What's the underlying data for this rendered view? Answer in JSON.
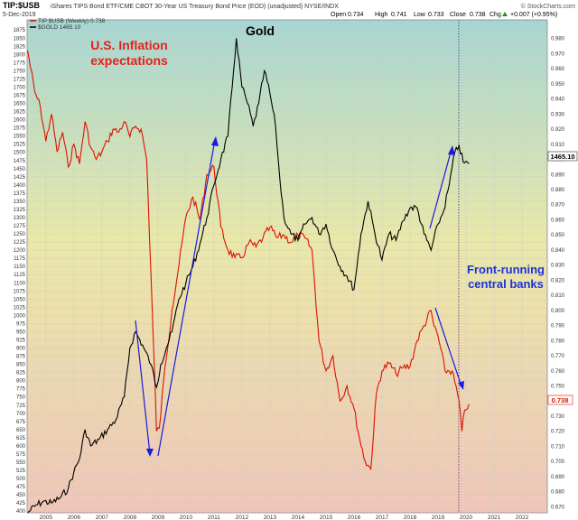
{
  "header": {
    "symbol": "TIP:$USB",
    "description": "iShares TIPS Bond ETF/CME CBOT 30-Year US Treasury Bond Price (EOD) (unadjusted) NYSE/INDX",
    "watermark": "© StockCharts.com",
    "date": "5-Dec-2019",
    "open_label": "Open",
    "open": "0.734",
    "high_label": "High",
    "high": "0.741",
    "low_label": "Low",
    "low": "0.733",
    "close_label": "Close",
    "close": "0.738",
    "chg_label": "Chg",
    "chg": "+0.007 (+0.95%)",
    "chg_icon": "up-triangle-icon"
  },
  "legend": {
    "tip_entry": "TIP:$USB (Weekly) 0.738",
    "gold_entry": "$GOLD 1465.10"
  },
  "colors": {
    "ratio": "#dd1100",
    "gold": "#000000",
    "arrow": "#1a1ae0",
    "grid": "#c8cdd2",
    "text_red": "#e8201a",
    "text_blue": "#1a33d8"
  },
  "annotations": {
    "inflation_line1": "U.S. Inflation",
    "inflation_line2": "expectations",
    "gold_label": "Gold",
    "front_line1": "Front-running",
    "front_line2": "central banks"
  },
  "value_tags": {
    "gold": "1465.10",
    "ratio": "0.738"
  },
  "chart_data": {
    "type": "line",
    "x_ticks": [
      "2005",
      "2006",
      "2007",
      "2008",
      "2009",
      "2010",
      "2011",
      "2012",
      "2013",
      "2014",
      "2015",
      "2016",
      "2017",
      "2018",
      "2019",
      "2020",
      "2021",
      "2022"
    ],
    "left_axis": {
      "min": 400,
      "max": 1875,
      "step": 25
    },
    "right_axis": {
      "min": 0.67,
      "max": 0.98,
      "step": 0.01
    },
    "series": [
      {
        "name": "TIP:$USB",
        "axis": "right",
        "x": [
          2004.35,
          2004.6,
          2004.8,
          2005.0,
          2005.2,
          2005.4,
          2005.6,
          2005.8,
          2006.0,
          2006.2,
          2006.4,
          2006.6,
          2006.8,
          2007.0,
          2007.2,
          2007.4,
          2007.6,
          2007.8,
          2008.0,
          2008.2,
          2008.4,
          2008.6,
          2008.8,
          2008.95,
          2009.05,
          2009.25,
          2009.5,
          2009.75,
          2010.0,
          2010.25,
          2010.5,
          2010.75,
          2011.0,
          2011.25,
          2011.5,
          2011.75,
          2012.0,
          2012.25,
          2012.5,
          2012.75,
          2013.0,
          2013.25,
          2013.5,
          2013.75,
          2014.0,
          2014.25,
          2014.5,
          2014.75,
          2015.0,
          2015.25,
          2015.5,
          2015.75,
          2016.0,
          2016.2,
          2016.4,
          2016.6,
          2016.8,
          2017.0,
          2017.25,
          2017.5,
          2017.75,
          2018.0,
          2018.25,
          2018.5,
          2018.75,
          2018.85,
          2019.0,
          2019.25,
          2019.5,
          2019.75,
          2019.85,
          2019.95,
          2020.1
        ],
        "values": [
          0.972,
          0.945,
          0.935,
          0.912,
          0.93,
          0.905,
          0.918,
          0.895,
          0.91,
          0.897,
          0.925,
          0.908,
          0.9,
          0.905,
          0.912,
          0.92,
          0.918,
          0.925,
          0.915,
          0.922,
          0.92,
          0.9,
          0.8,
          0.72,
          0.722,
          0.762,
          0.8,
          0.83,
          0.862,
          0.875,
          0.86,
          0.89,
          0.895,
          0.855,
          0.84,
          0.835,
          0.835,
          0.845,
          0.842,
          0.848,
          0.855,
          0.848,
          0.85,
          0.845,
          0.85,
          0.848,
          0.84,
          0.78,
          0.76,
          0.77,
          0.74,
          0.75,
          0.735,
          0.715,
          0.7,
          0.695,
          0.745,
          0.76,
          0.765,
          0.758,
          0.762,
          0.763,
          0.78,
          0.79,
          0.8,
          0.79,
          0.783,
          0.76,
          0.76,
          0.74,
          0.72,
          0.734,
          0.738
        ]
      },
      {
        "name": "$GOLD",
        "axis": "left",
        "x": [
          2004.35,
          2004.6,
          2004.9,
          2005.2,
          2005.5,
          2005.8,
          2006.0,
          2006.2,
          2006.4,
          2006.6,
          2006.9,
          2007.2,
          2007.5,
          2007.8,
          2008.0,
          2008.2,
          2008.5,
          2008.75,
          2008.95,
          2009.1,
          2009.3,
          2009.5,
          2009.75,
          2010.0,
          2010.25,
          2010.5,
          2010.75,
          2011.0,
          2011.25,
          2011.5,
          2011.65,
          2011.8,
          2012.0,
          2012.2,
          2012.4,
          2012.6,
          2012.8,
          2013.0,
          2013.2,
          2013.35,
          2013.5,
          2013.75,
          2014.0,
          2014.25,
          2014.5,
          2014.75,
          2015.0,
          2015.25,
          2015.5,
          2015.75,
          2016.0,
          2016.25,
          2016.5,
          2016.75,
          2017.0,
          2017.25,
          2017.5,
          2017.75,
          2018.0,
          2018.25,
          2018.5,
          2018.75,
          2019.0,
          2019.2,
          2019.4,
          2019.6,
          2019.75,
          2019.9,
          2020.1
        ],
        "values": [
          395,
          415,
          430,
          425,
          440,
          470,
          520,
          560,
          650,
          600,
          620,
          650,
          680,
          750,
          900,
          950,
          900,
          850,
          780,
          850,
          900,
          950,
          1050,
          1100,
          1150,
          1220,
          1300,
          1400,
          1480,
          1550,
          1700,
          1850,
          1700,
          1650,
          1580,
          1650,
          1750,
          1680,
          1580,
          1420,
          1300,
          1250,
          1230,
          1280,
          1300,
          1250,
          1280,
          1200,
          1150,
          1120,
          1080,
          1250,
          1350,
          1250,
          1170,
          1250,
          1230,
          1290,
          1330,
          1330,
          1250,
          1200,
          1280,
          1320,
          1400,
          1500,
          1520,
          1470,
          1465
        ]
      }
    ]
  }
}
